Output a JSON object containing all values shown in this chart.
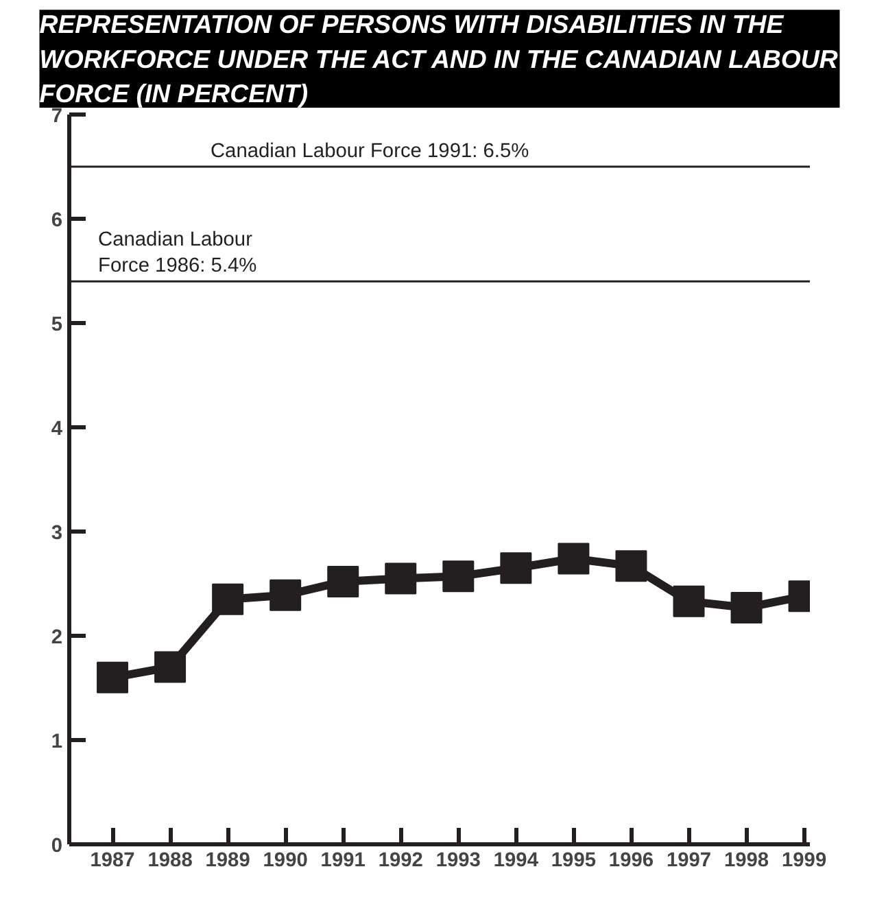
{
  "chart_data": {
    "type": "line",
    "title": "REPRESENTATION OF PERSONS WITH DISABILITIES IN THE WORKFORCE UNDER THE ACT AND IN THE CANADIAN LABOUR FORCE (IN PERCENT)",
    "categories": [
      "1987",
      "1988",
      "1989",
      "1990",
      "1991",
      "1992",
      "1993",
      "1994",
      "1995",
      "1996",
      "1997",
      "1998",
      "1999"
    ],
    "series": [
      {
        "color": "#231f20",
        "values": [
          1.6,
          1.7,
          2.35,
          2.39,
          2.52,
          2.55,
          2.57,
          2.65,
          2.74,
          2.67,
          2.33,
          2.27,
          2.38
        ]
      }
    ],
    "ylim": [
      0,
      7
    ],
    "yticks": [
      0,
      1,
      2,
      3,
      4,
      5,
      6,
      7
    ],
    "ref_lines": [
      {
        "axis": "y",
        "value": 5.4,
        "label": "Canadian Labour\nForce 1986: 5.4%",
        "color": "#231f20"
      },
      {
        "axis": "y",
        "value": 6.5,
        "label": "Canadian Labour Force 1991: 6.5%",
        "color": "#231f20"
      }
    ],
    "grid": false,
    "marker": "square",
    "line_style": "solid"
  }
}
